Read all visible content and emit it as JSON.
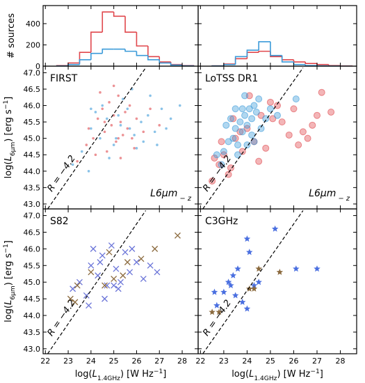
{
  "chart_data": [
    {
      "type": "histogram",
      "ylabel": [
        "# sources"
      ],
      "bins": [
        22.5,
        23,
        23.5,
        24,
        24.5,
        25,
        25.5,
        26,
        26.5,
        27,
        27.5,
        28,
        28.5
      ],
      "series": [
        {
          "color": "#e0474c",
          "values": [
            5,
            30,
            130,
            320,
            510,
            470,
            320,
            190,
            90,
            40,
            15,
            5
          ]
        },
        {
          "color": "#3a9ad9",
          "values": [
            2,
            15,
            60,
            120,
            160,
            160,
            140,
            100,
            60,
            30,
            10,
            3
          ]
        }
      ],
      "xlim": [
        21.9,
        28.7
      ],
      "xticks": [
        22,
        23,
        24,
        25,
        26,
        27,
        28
      ],
      "ylim": [
        0,
        570
      ],
      "yticks": [
        0,
        200,
        400
      ]
    },
    {
      "type": "histogram",
      "bins": [
        22.5,
        23,
        23.5,
        24,
        24.5,
        25,
        25.5,
        26,
        26.5,
        27,
        27.5,
        28,
        28.5
      ],
      "series": [
        {
          "color": "#e0474c",
          "values": [
            3,
            20,
            70,
            130,
            140,
            90,
            60,
            40,
            25,
            15,
            5,
            2
          ]
        },
        {
          "color": "#3a9ad9",
          "values": [
            2,
            15,
            90,
            150,
            230,
            100,
            40,
            15,
            5,
            3,
            1,
            0
          ]
        }
      ],
      "xlim": [
        21.9,
        28.7
      ],
      "xticks": [
        22,
        23,
        24,
        25,
        26,
        27,
        28
      ],
      "ylim": [
        0,
        570
      ],
      "yticks": [
        0,
        200,
        400
      ]
    },
    {
      "type": "scatter",
      "label": "FIRST",
      "sublabel": [
        "L",
        "6μm",
        " − z"
      ],
      "ylabel": [
        "log(",
        "L",
        "6μm",
        ") [erg s",
        "−1",
        "]"
      ],
      "reference_line": {
        "label": "R = −4.2",
        "x": [
          22.1,
          26.4
        ],
        "y": [
          42.85,
          47.15
        ]
      },
      "series": [
        {
          "color": "#e0474c",
          "marker": "dot",
          "x": [
            23.4,
            23.8,
            24.1,
            24.3,
            24.5,
            24.6,
            24.8,
            24.9,
            25.0,
            25.1,
            25.2,
            25.3,
            25.4,
            25.5,
            25.6,
            25.8,
            26.0,
            26.3,
            26.6,
            27.0,
            24.2,
            24.7,
            25.0,
            25.3,
            25.7,
            24.4,
            25.9,
            23.9,
            24.6,
            25.2
          ],
          "values": [
            44.3,
            44.8,
            45.0,
            45.6,
            45.9,
            45.2,
            46.1,
            45.4,
            45.7,
            44.9,
            46.3,
            45.5,
            45.1,
            45.8,
            45.3,
            45.0,
            45.6,
            45.2,
            45.9,
            45.4,
            44.5,
            44.6,
            46.6,
            44.4,
            46.0,
            46.4,
            44.7,
            45.3,
            45.5,
            45.0
          ]
        },
        {
          "color": "#3a9ad9",
          "marker": "dot",
          "x": [
            23.2,
            23.6,
            24.0,
            24.4,
            24.7,
            25.0,
            25.3,
            25.6,
            25.9,
            26.2,
            26.5,
            26.8,
            27.1,
            27.5,
            27.9,
            24.2,
            24.8,
            25.4,
            26.0,
            26.6,
            25.1,
            25.7,
            26.3,
            23.9,
            24.5,
            25.2,
            25.8,
            26.9,
            27.3,
            24.0
          ],
          "values": [
            44.2,
            44.6,
            45.3,
            45.0,
            45.6,
            44.8,
            45.4,
            45.9,
            45.1,
            45.5,
            45.7,
            45.2,
            45.9,
            45.6,
            46.0,
            45.8,
            44.4,
            46.2,
            44.7,
            46.3,
            45.0,
            45.3,
            44.9,
            44.0,
            46.0,
            45.7,
            46.5,
            44.8,
            45.3,
            45.9
          ]
        }
      ],
      "xlim": [
        21.9,
        28.7
      ],
      "xticks": [
        22,
        23,
        24,
        25,
        26,
        27,
        28
      ],
      "ylim": [
        42.85,
        47.2
      ],
      "yticks": [
        {
          "value": 43,
          "label": "43.0"
        },
        43.5,
        {
          "value": 44,
          "label": "44.0"
        },
        44.5,
        {
          "value": 45,
          "label": "45.0"
        },
        45.5,
        {
          "value": 46,
          "label": "46.0"
        },
        46.5,
        {
          "value": 47,
          "label": "47.0"
        }
      ]
    },
    {
      "type": "scatter",
      "label": "LoTSS DR1",
      "sublabel": [
        "L",
        "6μm",
        " − z"
      ],
      "reference_line": {
        "label": "R = −4.2",
        "x": [
          22.1,
          26.4
        ],
        "y": [
          42.85,
          47.15
        ]
      },
      "series": [
        {
          "color": "#e0474c",
          "marker": "circle",
          "x": [
            22.5,
            22.8,
            23.0,
            23.3,
            23.5,
            23.8,
            24.0,
            24.3,
            24.6,
            25.0,
            25.5,
            26.0,
            26.4,
            26.8,
            27.2,
            27.6,
            23.2,
            23.7,
            24.1,
            24.8,
            25.3,
            25.8,
            26.2,
            22.9,
            23.4,
            24.5,
            25.1,
            26.6,
            27.0,
            22.6
          ],
          "values": [
            43.7,
            44.2,
            44.5,
            44.1,
            45.0,
            44.6,
            45.3,
            44.9,
            45.7,
            46.1,
            45.5,
            45.9,
            45.2,
            45.4,
            46.4,
            45.8,
            43.9,
            45.2,
            46.3,
            44.7,
            46.0,
            45.1,
            44.8,
            44.9,
            45.6,
            44.3,
            45.6,
            45.0,
            45.7,
            44.4
          ]
        },
        {
          "color": "#3a9ad9",
          "marker": "circle",
          "x": [
            23.0,
            23.2,
            23.4,
            23.5,
            23.6,
            23.7,
            23.8,
            23.9,
            24.0,
            24.1,
            24.2,
            24.3,
            24.4,
            24.5,
            23.3,
            23.6,
            23.9,
            24.2,
            24.6,
            22.7,
            22.9,
            23.8,
            24.0,
            24.8,
            25.0,
            23.5,
            24.3,
            23.1,
            25.3,
            26.1
          ],
          "values": [
            44.6,
            44.9,
            45.0,
            45.3,
            44.8,
            45.5,
            45.2,
            45.7,
            45.4,
            45.9,
            45.6,
            46.0,
            45.8,
            46.2,
            45.6,
            44.5,
            46.3,
            45.1,
            45.3,
            44.5,
            44.2,
            45.9,
            44.8,
            45.6,
            45.9,
            45.9,
            44.9,
            45.4,
            45.7,
            46.2
          ]
        }
      ],
      "xlim": [
        21.9,
        28.7
      ],
      "xticks": [
        22,
        23,
        24,
        25,
        26,
        27,
        28
      ],
      "ylim": [
        42.85,
        47.2
      ],
      "yticks": [
        43,
        43.5,
        44,
        44.5,
        45,
        45.5,
        46,
        46.5,
        47
      ]
    },
    {
      "type": "scatter",
      "label": "S82",
      "ylabel": [
        "log(",
        "L",
        "6μm",
        ") [erg s",
        "−1",
        "]"
      ],
      "xlabel": [
        "log(",
        "L",
        "1.4GHz",
        ") [W Hz",
        "−1",
        "]"
      ],
      "reference_line": {
        "label": "R = −4.2",
        "x": [
          22.1,
          26.4
        ],
        "y": [
          42.85,
          47.15
        ]
      },
      "series": [
        {
          "color": "#6a74d8",
          "marker": "x",
          "x": [
            23.2,
            23.5,
            23.8,
            24.0,
            24.3,
            24.5,
            24.7,
            24.9,
            25.1,
            25.3,
            25.5,
            25.7,
            26.0,
            26.3,
            26.6,
            24.1,
            24.6,
            25.2,
            25.8,
            26.9,
            23.9,
            24.4,
            25.0
          ],
          "values": [
            44.8,
            45.0,
            44.6,
            45.5,
            45.2,
            45.8,
            44.9,
            46.1,
            45.4,
            45.0,
            45.9,
            45.3,
            45.6,
            45.1,
            45.5,
            46.0,
            44.5,
            44.8,
            46.0,
            45.3,
            44.3,
            45.6,
            44.9
          ]
        },
        {
          "color": "#8b6a3e",
          "marker": "x",
          "x": [
            23.1,
            23.4,
            24.0,
            24.6,
            25.0,
            25.6,
            26.2,
            26.8,
            27.8,
            24.8,
            25.4,
            23.3
          ],
          "values": [
            44.5,
            44.9,
            45.3,
            44.9,
            45.1,
            45.6,
            45.7,
            46.0,
            46.4,
            45.9,
            45.2,
            44.4
          ]
        }
      ],
      "xlim": [
        21.9,
        28.7
      ],
      "xticks": [
        22,
        23,
        24,
        25,
        26,
        27,
        28
      ],
      "ylim": [
        42.85,
        47.2
      ],
      "yticks": [
        {
          "value": 43,
          "label": "43.0"
        },
        43.5,
        {
          "value": 44,
          "label": "44.0"
        },
        44.5,
        {
          "value": 45,
          "label": "45.0"
        },
        45.5,
        {
          "value": 46,
          "label": "46.0"
        },
        46.5,
        {
          "value": 47,
          "label": "47.0"
        }
      ]
    },
    {
      "type": "scatter",
      "label": "C3GHz",
      "xlabel": [
        "log(",
        "L",
        "1.4GHz",
        ") [W Hz",
        "−1",
        "]"
      ],
      "reference_line": {
        "label": "R = −4.2",
        "x": [
          22.1,
          26.4
        ],
        "y": [
          42.85,
          47.15
        ]
      },
      "series": [
        {
          "color": "#4a6fe0",
          "marker": "star",
          "x": [
            22.6,
            22.7,
            23.0,
            23.2,
            23.4,
            23.5,
            23.6,
            23.8,
            24.0,
            24.1,
            24.3,
            24.5,
            25.2,
            26.1,
            27.0,
            23.3,
            24.0
          ],
          "values": [
            44.7,
            44.3,
            44.7,
            45.0,
            45.2,
            44.6,
            45.4,
            44.4,
            46.3,
            45.9,
            44.9,
            45.0,
            46.6,
            45.4,
            45.4,
            44.9,
            44.2
          ]
        },
        {
          "color": "#8b6a3e",
          "marker": "star",
          "x": [
            22.5,
            22.8,
            24.1,
            24.5,
            25.4,
            24.3
          ],
          "values": [
            44.1,
            44.1,
            44.8,
            45.4,
            45.3,
            44.8
          ]
        }
      ],
      "xlim": [
        21.9,
        28.7
      ],
      "xticks": [
        22,
        23,
        24,
        25,
        26,
        27,
        28
      ],
      "ylim": [
        42.85,
        47.2
      ],
      "yticks": [
        43,
        43.5,
        44,
        44.5,
        45,
        45.5,
        46,
        46.5,
        47
      ]
    }
  ]
}
